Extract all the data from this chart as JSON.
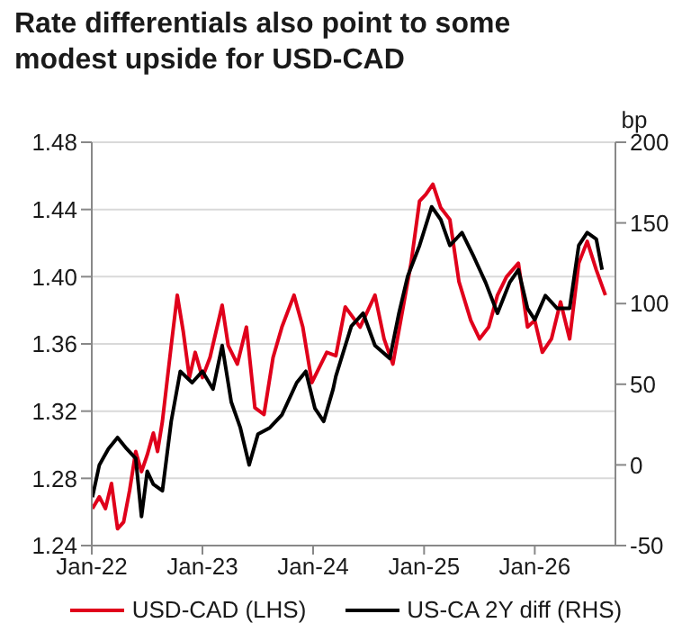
{
  "chart_data": {
    "type": "line",
    "title": "Rate differentials also point to some modest upside for USD-CAD",
    "y2label": "bp",
    "xlim": [
      "2022-01-01",
      "2026-09-24"
    ],
    "xticks": [
      {
        "value": "2022-01-01",
        "label": "Jan-22"
      },
      {
        "value": "2023-01-01",
        "label": "Jan-23"
      },
      {
        "value": "2024-01-01",
        "label": "Jan-24"
      },
      {
        "value": "2025-01-01",
        "label": "Jan-25"
      },
      {
        "value": "2026-01-01",
        "label": "Jan-26"
      }
    ],
    "ylim": [
      1.24,
      1.48
    ],
    "yticks": [
      1.24,
      1.28,
      1.32,
      1.36,
      {
        "value": 1.4,
        "label": "1.40"
      },
      1.44,
      1.48
    ],
    "y2lim": [
      -50,
      200
    ],
    "y2ticks": [
      -50,
      0,
      50,
      100,
      150,
      200
    ],
    "grid": "y",
    "legend": "bottom",
    "marker": "none",
    "line_style": "solid",
    "series": [
      {
        "name": "USD-CAD (LHS)",
        "color": "#e0001b",
        "x": [
          "2022-01-03",
          "2022-01-26",
          "2022-02-15",
          "2022-03-07",
          "2022-03-27",
          "2022-04-16",
          "2022-05-06",
          "2022-05-26",
          "2022-06-14",
          "2022-07-03",
          "2022-07-23",
          "2022-08-06",
          "2022-08-22",
          "2022-09-20",
          "2022-10-10",
          "2022-10-30",
          "2022-11-19",
          "2022-12-08",
          "2023-01-01",
          "2023-01-26",
          "2023-03-07",
          "2023-03-27",
          "2023-04-26",
          "2023-05-26",
          "2023-06-23",
          "2023-07-23",
          "2023-08-22",
          "2023-09-20",
          "2023-10-30",
          "2023-11-28",
          "2023-12-28",
          "2024-01-16",
          "2024-02-15",
          "2024-03-16",
          "2024-04-16",
          "2024-06-04",
          "2024-07-23",
          "2024-08-22",
          "2024-09-20",
          "2024-10-20",
          "2024-11-19",
          "2024-12-17",
          "2025-01-07",
          "2025-01-30",
          "2025-02-25",
          "2025-03-27",
          "2025-04-26",
          "2025-06-04",
          "2025-07-03",
          "2025-08-02",
          "2025-08-31",
          "2025-09-30",
          "2025-11-08",
          "2025-12-08",
          "2026-01-01",
          "2026-01-26",
          "2026-02-25",
          "2026-03-27",
          "2026-04-26",
          "2026-05-26",
          "2026-06-23",
          "2026-07-23",
          "2026-08-22"
        ],
        "values": [
          1.262,
          1.269,
          1.262,
          1.277,
          1.25,
          1.254,
          1.273,
          1.296,
          1.284,
          1.294,
          1.307,
          1.296,
          1.314,
          1.359,
          1.389,
          1.367,
          1.34,
          1.355,
          1.34,
          1.352,
          1.383,
          1.359,
          1.348,
          1.37,
          1.322,
          1.318,
          1.352,
          1.37,
          1.389,
          1.37,
          1.337,
          1.344,
          1.355,
          1.353,
          1.382,
          1.37,
          1.389,
          1.363,
          1.348,
          1.378,
          1.408,
          1.445,
          1.449,
          1.455,
          1.441,
          1.434,
          1.397,
          1.374,
          1.363,
          1.37,
          1.389,
          1.4,
          1.408,
          1.37,
          1.374,
          1.355,
          1.363,
          1.385,
          1.363,
          1.408,
          1.421,
          1.404,
          1.389
        ]
      },
      {
        "name": "US-CA 2Y diff (RHS)",
        "color": "#000000",
        "axis": "y2",
        "x": [
          "2022-01-03",
          "2022-01-26",
          "2022-02-25",
          "2022-03-27",
          "2022-04-26",
          "2022-05-26",
          "2022-06-14",
          "2022-07-03",
          "2022-07-23",
          "2022-08-22",
          "2022-09-20",
          "2022-10-20",
          "2022-11-28",
          "2023-01-01",
          "2023-02-05",
          "2023-03-07",
          "2023-04-06",
          "2023-05-06",
          "2023-06-04",
          "2023-07-03",
          "2023-08-11",
          "2023-09-20",
          "2023-11-08",
          "2023-12-08",
          "2024-01-07",
          "2024-02-05",
          "2024-03-07",
          "2024-03-16",
          "2024-05-06",
          "2024-06-14",
          "2024-07-23",
          "2024-09-10",
          "2024-10-10",
          "2024-11-08",
          "2024-12-17",
          "2025-01-26",
          "2025-02-25",
          "2025-03-27",
          "2025-05-06",
          "2025-06-14",
          "2025-07-23",
          "2025-08-31",
          "2025-10-10",
          "2025-11-08",
          "2025-12-08",
          "2026-01-01",
          "2026-02-05",
          "2026-03-16",
          "2026-04-26",
          "2026-05-26",
          "2026-06-23",
          "2026-07-23",
          "2026-08-11"
        ],
        "values": [
          -20,
          0,
          10,
          17,
          10,
          4,
          -32,
          -4,
          -12,
          -16,
          27,
          58,
          51,
          58,
          47,
          74,
          39,
          23,
          0,
          19,
          23,
          31,
          51,
          58,
          35,
          27,
          47,
          55,
          86,
          94,
          74,
          66,
          94,
          117,
          136,
          160,
          152,
          136,
          144,
          129,
          113,
          94,
          113,
          121,
          97,
          90,
          105,
          97,
          97,
          136,
          144,
          140,
          121
        ]
      }
    ]
  }
}
